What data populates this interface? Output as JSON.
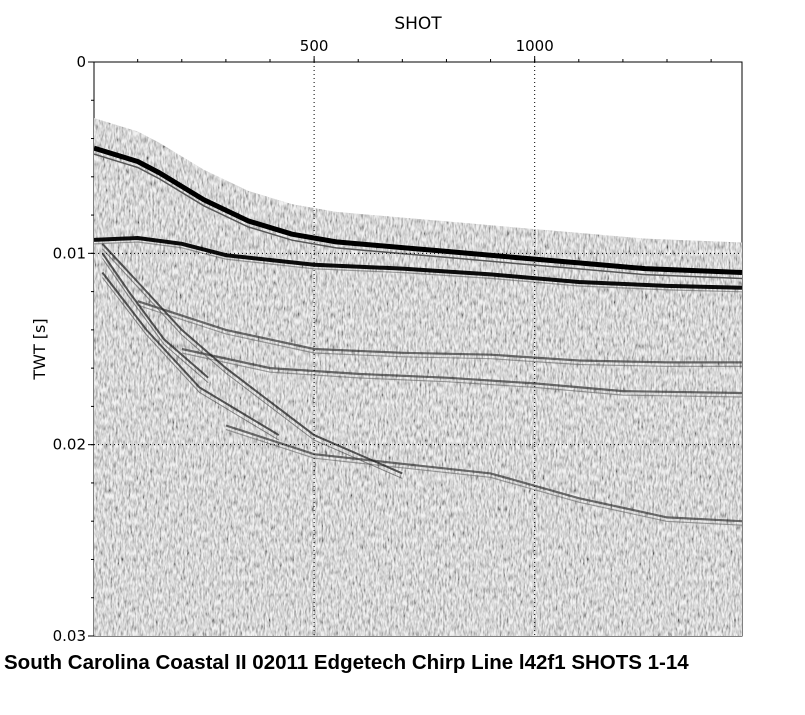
{
  "chart_data": {
    "type": "heatmap",
    "title": "South Carolina Coastal II 02011 Edgetech Chirp Line l42f1 SHOTS 1-14",
    "xlabel": "SHOT",
    "ylabel": "TWT [s]",
    "xlim": [
      1,
      1470
    ],
    "ylim": [
      0,
      0.03
    ],
    "y_inverted": true,
    "x_axis_position": "top",
    "x_ticks": [
      {
        "value": 500,
        "label": "500"
      },
      {
        "value": 1000,
        "label": "1000"
      }
    ],
    "y_ticks": [
      {
        "value": 0,
        "label": "0"
      },
      {
        "value": 0.01,
        "label": "0.01"
      },
      {
        "value": 0.02,
        "label": "0.02"
      },
      {
        "value": 0.03,
        "label": "0.03"
      }
    ],
    "grid": "dotted",
    "colormap": "grayscale",
    "seafloor_twt": {
      "shot": [
        1,
        100,
        150,
        250,
        350,
        450,
        550,
        700,
        800,
        950,
        1100,
        1250,
        1470
      ],
      "twt": [
        0.0045,
        0.0052,
        0.0058,
        0.0072,
        0.0083,
        0.009,
        0.0094,
        0.0097,
        0.0099,
        0.0102,
        0.0105,
        0.0108,
        0.011
      ]
    },
    "reflectors": [
      {
        "shot": [
          1,
          100,
          200,
          300,
          500,
          700,
          900,
          1100,
          1300,
          1470
        ],
        "twt": [
          0.0093,
          0.0092,
          0.0095,
          0.0101,
          0.0106,
          0.0108,
          0.0111,
          0.0115,
          0.0117,
          0.0118
        ]
      },
      {
        "shot": [
          100,
          300,
          500,
          700,
          900,
          1100,
          1300,
          1470
        ],
        "twt": [
          0.0125,
          0.014,
          0.015,
          0.0152,
          0.0153,
          0.0156,
          0.0157,
          0.0157
        ]
      },
      {
        "shot": [
          200,
          400,
          600,
          800,
          1000,
          1200,
          1470
        ],
        "twt": [
          0.015,
          0.016,
          0.0163,
          0.0165,
          0.0168,
          0.0172,
          0.0173
        ]
      },
      {
        "shot": [
          300,
          500,
          700,
          900,
          1100,
          1300,
          1470
        ],
        "twt": [
          0.019,
          0.0205,
          0.021,
          0.0215,
          0.0228,
          0.0238,
          0.024
        ]
      }
    ],
    "dipping_reflectors": [
      {
        "shot": [
          20,
          100,
          200,
          300,
          500,
          700
        ],
        "twt": [
          0.0095,
          0.0115,
          0.014,
          0.016,
          0.0195,
          0.0215
        ]
      },
      {
        "shot": [
          20,
          80,
          160,
          260
        ],
        "twt": [
          0.01,
          0.012,
          0.0145,
          0.0165
        ]
      },
      {
        "shot": [
          20,
          120,
          240,
          420
        ],
        "twt": [
          0.011,
          0.014,
          0.017,
          0.0195
        ]
      }
    ]
  }
}
